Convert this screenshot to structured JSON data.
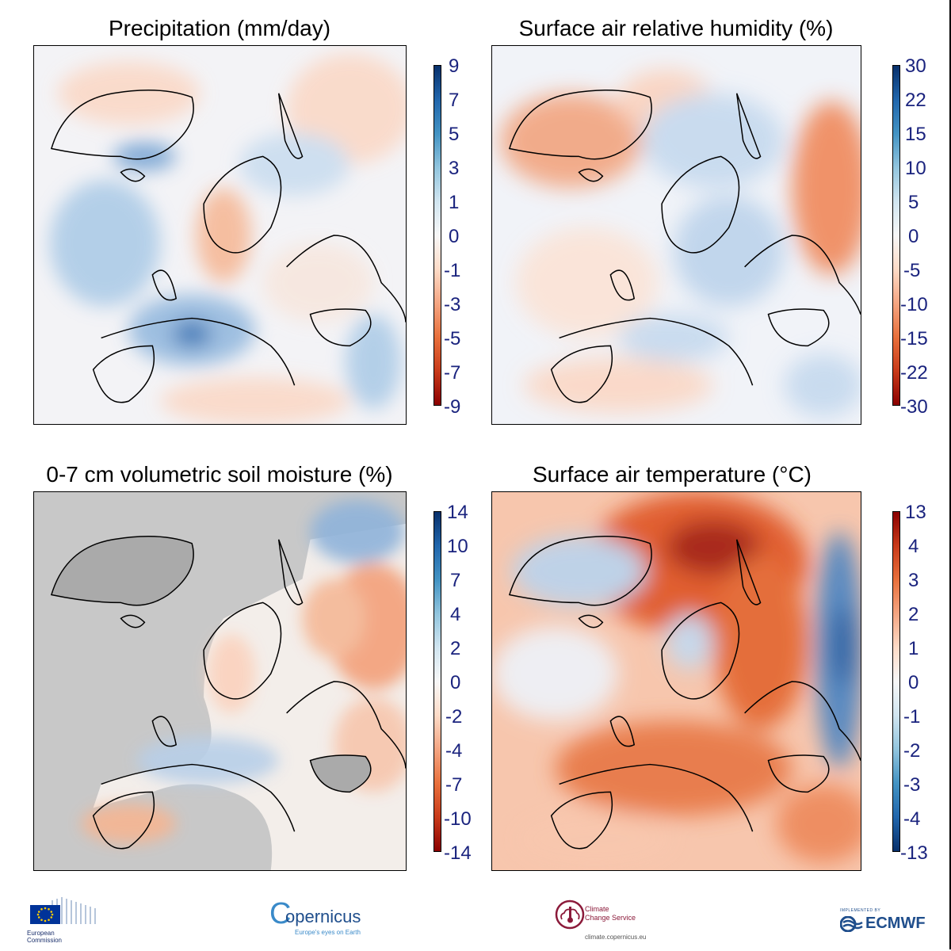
{
  "panels": [
    {
      "id": "precipitation",
      "title": "Precipitation (mm/day)",
      "colorbar_ticks": [
        "9",
        "7",
        "5",
        "3",
        "1",
        "0",
        "-1",
        "-3",
        "-5",
        "-7",
        "-9"
      ],
      "colorbar_gradient": [
        "#08306b",
        "#2166ac",
        "#4393c3",
        "#92c5de",
        "#d1e5f0",
        "#f7f7f7",
        "#fddbc7",
        "#f4a582",
        "#e8703c",
        "#c83a1a",
        "#8b0000"
      ]
    },
    {
      "id": "humidity",
      "title": "Surface air relative humidity (%)",
      "colorbar_ticks": [
        "30",
        "22",
        "15",
        "10",
        "5",
        "0",
        "-5",
        "-10",
        "-15",
        "-22",
        "-30"
      ],
      "colorbar_gradient": [
        "#08306b",
        "#2166ac",
        "#4393c3",
        "#92c5de",
        "#d1e5f0",
        "#f7f7f7",
        "#fddbc7",
        "#f4a582",
        "#e8703c",
        "#c83a1a",
        "#8b0000"
      ]
    },
    {
      "id": "soil-moisture",
      "title": "0-7 cm volumetric soil moisture (%)",
      "colorbar_ticks": [
        "14",
        "10",
        "7",
        "4",
        "2",
        "0",
        "-2",
        "-4",
        "-7",
        "-10",
        "-14"
      ],
      "colorbar_gradient": [
        "#08306b",
        "#2166ac",
        "#4393c3",
        "#92c5de",
        "#d1e5f0",
        "#f7f7f7",
        "#fddbc7",
        "#f4a582",
        "#e8703c",
        "#c83a1a",
        "#8b0000"
      ]
    },
    {
      "id": "temperature",
      "title": "Surface air temperature (°C)",
      "colorbar_ticks": [
        "13",
        "4",
        "3",
        "2",
        "1",
        "0",
        "-1",
        "-2",
        "-3",
        "-4",
        "-13"
      ],
      "colorbar_gradient": [
        "#8b0000",
        "#c83a1a",
        "#e8703c",
        "#f4a582",
        "#fddbc7",
        "#f7f7f7",
        "#d1e5f0",
        "#92c5de",
        "#4393c3",
        "#2166ac",
        "#08306b"
      ]
    }
  ],
  "footer": {
    "ec": {
      "line1": "European",
      "line2": "Commission"
    },
    "copernicus": {
      "name": "opernicus",
      "initial": "C",
      "tagline": "Europe's eyes on Earth"
    },
    "c3s": {
      "line1": "Climate",
      "line2": "Change Service",
      "url": "climate.copernicus.eu"
    },
    "ecmwf": {
      "implemented_by": "IMPLEMENTED BY",
      "name": "ECMWF"
    }
  }
}
